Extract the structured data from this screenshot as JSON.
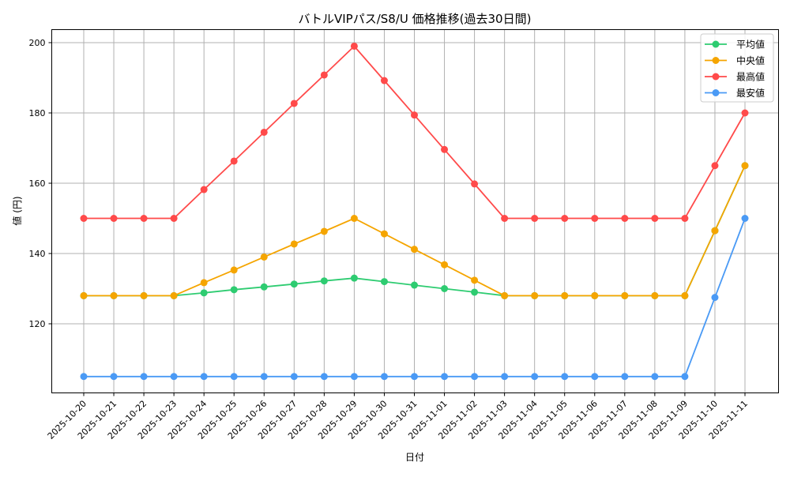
{
  "chart_data": {
    "type": "line",
    "title": "バトルVIPパス/S8/U 価格推移(過去30日間)",
    "xlabel": "日付",
    "ylabel": "値 (円)",
    "x": [
      "2025-10-20",
      "2025-10-21",
      "2025-10-22",
      "2025-10-23",
      "2025-10-24",
      "2025-10-25",
      "2025-10-26",
      "2025-10-27",
      "2025-10-28",
      "2025-10-29",
      "2025-10-30",
      "2025-10-31",
      "2025-11-01",
      "2025-11-02",
      "2025-11-03",
      "2025-11-04",
      "2025-11-05",
      "2025-11-06",
      "2025-11-07",
      "2025-11-08",
      "2025-11-09",
      "2025-11-10",
      "2025-11-11"
    ],
    "yticks": [
      120,
      140,
      160,
      180,
      200
    ],
    "ylim": [
      100.5,
      203.8
    ],
    "grid": true,
    "legend_position": "upper right",
    "series": [
      {
        "name": "平均値",
        "color": "#2ecc71",
        "values": [
          128,
          128,
          128,
          128,
          128.8,
          129.7,
          130.5,
          131.3,
          132.2,
          133,
          132,
          131,
          130,
          129,
          128,
          128,
          128,
          128,
          128,
          128,
          128,
          146.5,
          165
        ]
      },
      {
        "name": "中央値",
        "color": "#f5a500",
        "values": [
          128,
          128,
          128,
          128,
          131.7,
          135.3,
          139,
          142.7,
          146.3,
          150,
          145.6,
          141.2,
          136.8,
          132.4,
          128,
          128,
          128,
          128,
          128,
          128,
          128,
          146.5,
          165
        ]
      },
      {
        "name": "最高値",
        "color": "#ff4a4a",
        "values": [
          150,
          150,
          150,
          150,
          158.2,
          166.3,
          174.5,
          182.7,
          190.8,
          199,
          189.2,
          179.4,
          169.6,
          159.8,
          150,
          150,
          150,
          150,
          150,
          150,
          150,
          165,
          180
        ]
      },
      {
        "name": "最安値",
        "color": "#4a9af5",
        "values": [
          105,
          105,
          105,
          105,
          105,
          105,
          105,
          105,
          105,
          105,
          105,
          105,
          105,
          105,
          105,
          105,
          105,
          105,
          105,
          105,
          105,
          127.5,
          150
        ]
      }
    ]
  }
}
